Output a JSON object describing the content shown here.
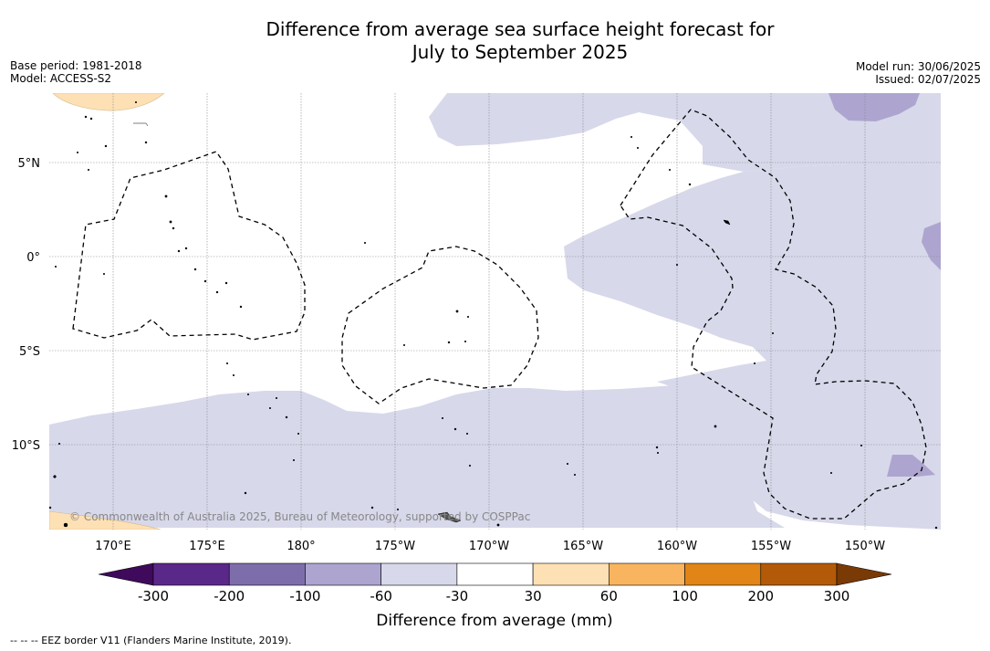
{
  "title_line1": "Difference from average sea surface height forecast for",
  "title_line2": "July to September 2025",
  "meta_left": {
    "base_period": "Base period: 1981-2018",
    "model": "Model: ACCESS-S2"
  },
  "meta_right": {
    "model_run": "Model run: 30/06/2025",
    "issued": "Issued: 02/07/2025"
  },
  "latitude_labels": [
    "5°N",
    "0°",
    "5°S",
    "10°S"
  ],
  "longitude_labels": [
    "170°E",
    "175°E",
    "180°",
    "175°W",
    "170°W",
    "165°W",
    "160°W",
    "155°W",
    "150°W"
  ],
  "copyright": "© Commonwealth of Australia 2025, Bureau of Meteorology, supported by COSPPac",
  "colorbar": {
    "ticks": [
      "-300",
      "-200",
      "-100",
      "-60",
      "-30",
      "30",
      "60",
      "100",
      "200",
      "300"
    ],
    "label": "Difference from average (mm)",
    "colors": [
      "#3f0a5c",
      "#5a2889",
      "#7d6eab",
      "#ada5cf",
      "#d7d8ea",
      "#ffffff",
      "#fde0b4",
      "#f8b45f",
      "#e08516",
      "#b35a08",
      "#7a3a05"
    ]
  },
  "legend_note": "--  --  -- EEZ border V11 (Flanders Marine Institute, 2019)."
}
